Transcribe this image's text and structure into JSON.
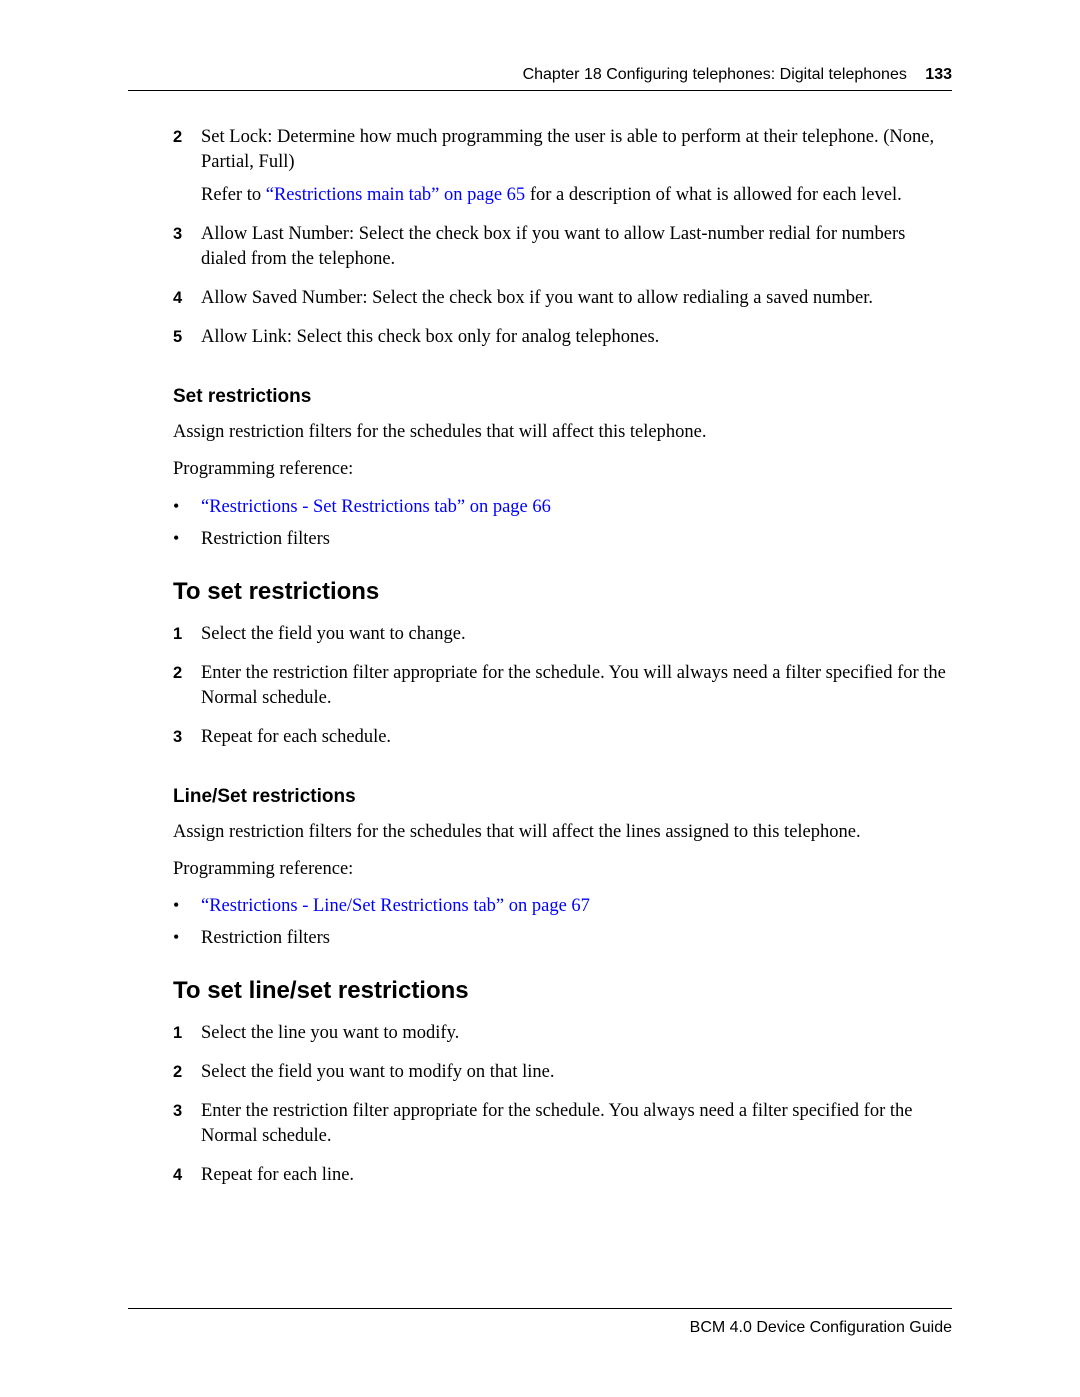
{
  "colors": {
    "link": "#0000ff",
    "text": "#000000",
    "background": "#ffffff",
    "rule": "#000000"
  },
  "header": {
    "chapter": "Chapter 18  Configuring telephones: Digital telephones",
    "page_number": "133"
  },
  "footer": {
    "text": "BCM 4.0 Device Configuration Guide"
  },
  "top_steps": [
    {
      "num": "2",
      "paras": [
        "Set Lock: Determine how much programming the user is able to perform at their telephone. (None, Partial, Full)",
        {
          "pre": "Refer to ",
          "link": "“Restrictions main tab” on page 65",
          "post": " for a description of what is allowed for each level."
        }
      ]
    },
    {
      "num": "3",
      "paras": [
        "Allow Last Number: Select the check box if you want to allow Last-number redial for numbers dialed from the telephone."
      ]
    },
    {
      "num": "4",
      "paras": [
        "Allow Saved Number: Select the check box if you want to allow redialing a saved number."
      ]
    },
    {
      "num": "5",
      "paras": [
        "Allow Link: Select this check box only for analog telephones."
      ]
    }
  ],
  "section_set": {
    "heading": "Set restrictions",
    "intro": "Assign restriction filters for the schedules that will affect this telephone.",
    "ref_label": "Programming reference:",
    "bullets": [
      {
        "link": "“Restrictions - Set Restrictions tab” on page 66"
      },
      {
        "text": "Restriction filters"
      }
    ],
    "proc_heading": "To set restrictions",
    "steps": [
      {
        "num": "1",
        "text": "Select the field you want to change."
      },
      {
        "num": "2",
        "text": "Enter the restriction filter appropriate for the schedule. You will always need a filter specified for the Normal schedule."
      },
      {
        "num": "3",
        "text": "Repeat for each schedule."
      }
    ]
  },
  "section_lineset": {
    "heading": "Line/Set restrictions",
    "intro": "Assign restriction filters for the schedules that will affect the lines assigned to this telephone.",
    "ref_label": "Programming reference:",
    "bullets": [
      {
        "link": "“Restrictions - Line/Set Restrictions tab” on page 67"
      },
      {
        "text": "Restriction filters"
      }
    ],
    "proc_heading": "To set line/set restrictions",
    "steps": [
      {
        "num": "1",
        "text": "Select the line you want to modify."
      },
      {
        "num": "2",
        "text": "Select the field you want to modify on that line."
      },
      {
        "num": "3",
        "text": "Enter the restriction filter appropriate for the schedule. You always need a filter specified for the Normal schedule."
      },
      {
        "num": "4",
        "text": "Repeat for each line."
      }
    ]
  }
}
